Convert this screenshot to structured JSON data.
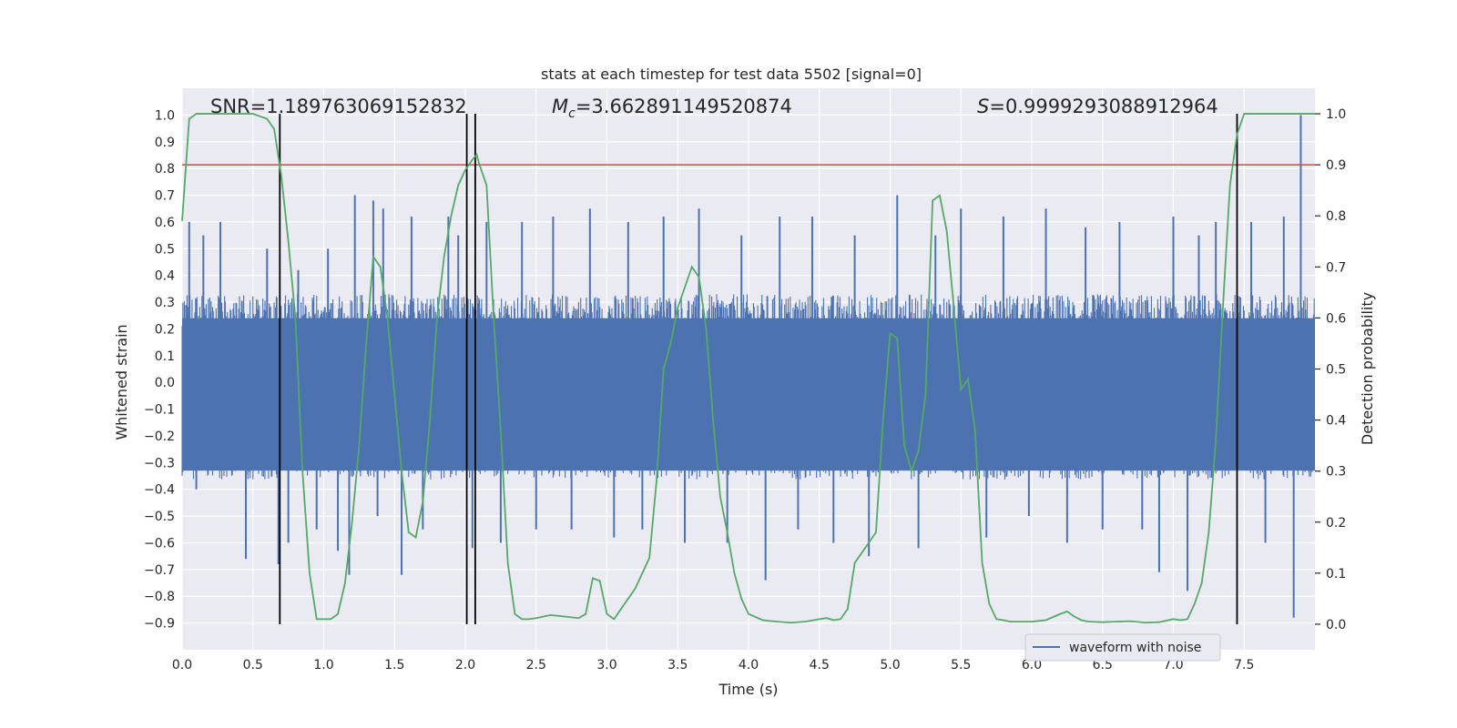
{
  "chart_data": {
    "type": "line",
    "title": "stats at each timestep for test data 5502 [signal=0]",
    "xlabel": "Time (s)",
    "ylabel": "Whitened strain",
    "y2label": "Detection probability",
    "xlim": [
      0.0,
      8.0
    ],
    "ylim": [
      -1.0,
      1.1
    ],
    "y2lim": [
      -0.05,
      1.05
    ],
    "xticks": [
      "0.0",
      "0.5",
      "1.0",
      "1.5",
      "2.0",
      "2.5",
      "3.0",
      "3.5",
      "4.0",
      "4.5",
      "5.0",
      "5.5",
      "6.0",
      "6.5",
      "7.0",
      "7.5"
    ],
    "xtick_values": [
      0.0,
      0.5,
      1.0,
      1.5,
      2.0,
      2.5,
      3.0,
      3.5,
      4.0,
      4.5,
      5.0,
      5.5,
      6.0,
      6.5,
      7.0,
      7.5
    ],
    "yticks": [
      "−0.9",
      "−0.8",
      "−0.7",
      "−0.6",
      "−0.5",
      "−0.4",
      "−0.3",
      "−0.2",
      "−0.1",
      "0.0",
      "0.1",
      "0.2",
      "0.3",
      "0.4",
      "0.5",
      "0.6",
      "0.7",
      "0.8",
      "0.9",
      "1.0"
    ],
    "ytick_values": [
      -0.9,
      -0.8,
      -0.7,
      -0.6,
      -0.5,
      -0.4,
      -0.3,
      -0.2,
      -0.1,
      0.0,
      0.1,
      0.2,
      0.3,
      0.4,
      0.5,
      0.6,
      0.7,
      0.8,
      0.9,
      1.0
    ],
    "y2ticks": [
      "0.0",
      "0.1",
      "0.2",
      "0.3",
      "0.4",
      "0.5",
      "0.6",
      "0.7",
      "0.8",
      "0.9",
      "1.0"
    ],
    "y2tick_values": [
      0.0,
      0.1,
      0.2,
      0.3,
      0.4,
      0.5,
      0.6,
      0.7,
      0.8,
      0.9,
      1.0
    ],
    "annotations": {
      "snr": "SNR=1.189763069152832",
      "mc_symbol": "M",
      "mc_sub": "c",
      "mc_value": "=3.662891149520874",
      "s_symbol": "S",
      "s_value": "=0.9999293088912964"
    },
    "threshold": 0.9,
    "vertical_lines": [
      0.69,
      2.01,
      2.07,
      7.45
    ],
    "legend": {
      "label": "waveform with noise",
      "position": "lower-right"
    },
    "grid": true,
    "colors": {
      "background": "#eaeaf2",
      "waveform": "#4c72b0",
      "probability": "#55a868",
      "threshold": "#c44e52",
      "vline": "#000000",
      "grid": "#ffffff"
    },
    "series": [
      {
        "name": "waveform with noise",
        "role": "waveform",
        "description_of_shape": "dense noise band roughly between -0.3 and 0.3 with spikes reaching about -0.9 to 1.0",
        "core_range": [
          -0.33,
          0.3
        ],
        "spikes_x": [
          0.05,
          0.1,
          0.15,
          0.27,
          0.45,
          0.6,
          0.68,
          0.75,
          0.82,
          0.95,
          1.03,
          1.1,
          1.18,
          1.22,
          1.35,
          1.38,
          1.42,
          1.55,
          1.62,
          1.7,
          1.88,
          1.95,
          2.05,
          2.15,
          2.25,
          2.4,
          2.5,
          2.62,
          2.75,
          2.88,
          3.05,
          3.15,
          3.25,
          3.4,
          3.55,
          3.65,
          3.85,
          3.95,
          4.12,
          4.22,
          4.35,
          4.45,
          4.6,
          4.75,
          4.85,
          5.05,
          5.2,
          5.32,
          5.5,
          5.68,
          5.8,
          5.98,
          6.1,
          6.25,
          6.38,
          6.5,
          6.62,
          6.78,
          6.9,
          7.0,
          7.1,
          7.18,
          7.3,
          7.55,
          7.65,
          7.78,
          7.85,
          7.9
        ],
        "spikes_y": [
          0.6,
          -0.4,
          0.55,
          0.6,
          -0.66,
          0.5,
          -0.68,
          -0.6,
          0.42,
          -0.55,
          0.5,
          -0.63,
          -0.72,
          0.7,
          0.68,
          -0.5,
          0.65,
          -0.72,
          0.62,
          -0.55,
          0.62,
          0.55,
          -0.62,
          0.6,
          -0.6,
          0.6,
          -0.55,
          0.62,
          -0.55,
          0.65,
          -0.58,
          0.6,
          -0.55,
          0.62,
          -0.6,
          0.65,
          -0.6,
          0.55,
          -0.74,
          0.62,
          -0.55,
          0.62,
          -0.6,
          0.55,
          -0.65,
          0.7,
          -0.62,
          0.55,
          0.65,
          -0.58,
          0.62,
          -0.5,
          0.65,
          -0.6,
          0.58,
          -0.55,
          0.6,
          -0.55,
          -0.71,
          0.62,
          -0.78,
          0.55,
          0.6,
          0.6,
          -0.6,
          0.62,
          -0.88,
          1.0
        ]
      },
      {
        "name": "",
        "role": "detection_probability",
        "x": [
          0.0,
          0.05,
          0.1,
          0.2,
          0.3,
          0.4,
          0.5,
          0.6,
          0.65,
          0.7,
          0.75,
          0.8,
          0.85,
          0.9,
          0.95,
          1.0,
          1.05,
          1.1,
          1.15,
          1.2,
          1.25,
          1.3,
          1.35,
          1.4,
          1.45,
          1.5,
          1.55,
          1.6,
          1.65,
          1.7,
          1.75,
          1.8,
          1.85,
          1.9,
          1.95,
          2.0,
          2.05,
          2.08,
          2.1,
          2.15,
          2.2,
          2.25,
          2.3,
          2.35,
          2.4,
          2.45,
          2.5,
          2.6,
          2.7,
          2.8,
          2.85,
          2.9,
          2.95,
          3.0,
          3.05,
          3.1,
          3.2,
          3.3,
          3.35,
          3.4,
          3.45,
          3.5,
          3.55,
          3.6,
          3.65,
          3.7,
          3.75,
          3.8,
          3.85,
          3.9,
          3.95,
          4.0,
          4.1,
          4.2,
          4.3,
          4.4,
          4.5,
          4.55,
          4.6,
          4.65,
          4.7,
          4.75,
          4.8,
          4.85,
          4.9,
          4.95,
          5.0,
          5.05,
          5.1,
          5.15,
          5.2,
          5.25,
          5.3,
          5.35,
          5.4,
          5.45,
          5.5,
          5.55,
          5.6,
          5.65,
          5.7,
          5.75,
          5.8,
          5.85,
          5.9,
          6.0,
          6.1,
          6.2,
          6.25,
          6.3,
          6.35,
          6.4,
          6.5,
          6.6,
          6.7,
          6.8,
          6.9,
          7.0,
          7.05,
          7.1,
          7.15,
          7.2,
          7.25,
          7.3,
          7.35,
          7.4,
          7.45,
          7.5,
          7.55,
          7.6,
          7.7,
          7.8,
          7.9,
          8.0
        ],
        "values": [
          0.79,
          0.99,
          1.0,
          1.0,
          1.0,
          1.0,
          1.0,
          0.99,
          0.97,
          0.88,
          0.75,
          0.6,
          0.3,
          0.1,
          0.01,
          0.01,
          0.01,
          0.02,
          0.08,
          0.2,
          0.35,
          0.55,
          0.72,
          0.7,
          0.6,
          0.45,
          0.3,
          0.18,
          0.17,
          0.24,
          0.4,
          0.6,
          0.72,
          0.8,
          0.86,
          0.89,
          0.91,
          0.92,
          0.9,
          0.86,
          0.6,
          0.38,
          0.12,
          0.02,
          0.01,
          0.01,
          0.012,
          0.018,
          0.015,
          0.012,
          0.02,
          0.09,
          0.085,
          0.02,
          0.01,
          0.03,
          0.07,
          0.13,
          0.28,
          0.5,
          0.55,
          0.62,
          0.66,
          0.7,
          0.68,
          0.58,
          0.4,
          0.25,
          0.18,
          0.1,
          0.05,
          0.02,
          0.008,
          0.005,
          0.003,
          0.005,
          0.01,
          0.012,
          0.008,
          0.01,
          0.03,
          0.12,
          0.14,
          0.16,
          0.18,
          0.4,
          0.57,
          0.56,
          0.35,
          0.3,
          0.34,
          0.45,
          0.83,
          0.84,
          0.77,
          0.62,
          0.46,
          0.48,
          0.38,
          0.12,
          0.04,
          0.01,
          0.008,
          0.005,
          0.005,
          0.005,
          0.008,
          0.02,
          0.025,
          0.015,
          0.008,
          0.005,
          0.004,
          0.005,
          0.006,
          0.003,
          0.004,
          0.01,
          0.008,
          0.01,
          0.04,
          0.08,
          0.18,
          0.36,
          0.62,
          0.86,
          0.96,
          1.0,
          1.0,
          1.0,
          1.0,
          1.0,
          1.0,
          1.0
        ]
      }
    ]
  }
}
